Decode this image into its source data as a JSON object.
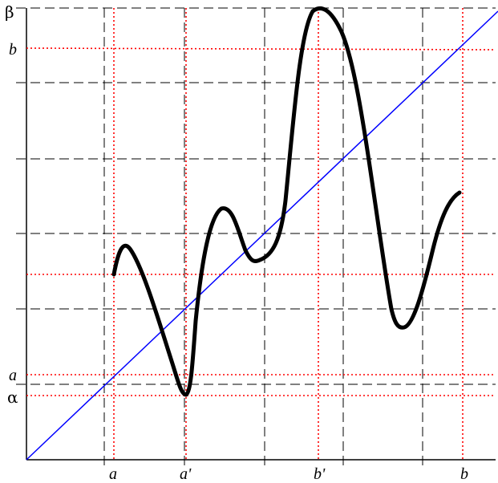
{
  "labels": {
    "x_a": "a",
    "x_a_prime": "a'",
    "x_b_prime": "b'",
    "x_b": "b",
    "y_beta": "β",
    "y_b": "b",
    "y_a": "a",
    "y_alpha": "α"
  },
  "colors": {
    "curve": "#000000",
    "diagonal": "#0000ff",
    "red_dotted": "#ff0000",
    "grid_dashed": "#000000"
  }
}
